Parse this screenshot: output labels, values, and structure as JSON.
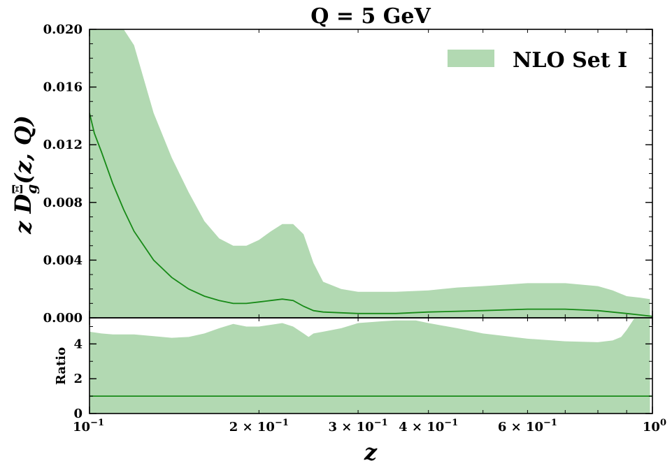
{
  "chart_data": {
    "type": "area",
    "title": "Q = 5 GeV",
    "xlabel": "z",
    "x_scale": "log",
    "xlim": [
      0.1,
      1.0
    ],
    "x_ticks": [
      {
        "value": 0.1,
        "label": "10^-1"
      },
      {
        "value": 0.2,
        "label": "2 × 10^-1"
      },
      {
        "value": 0.3,
        "label": "3 × 10^-1"
      },
      {
        "value": 0.4,
        "label": "4 × 10^-1"
      },
      {
        "value": 0.6,
        "label": "6 × 10^-1"
      },
      {
        "value": 1.0,
        "label": "10^0"
      }
    ],
    "legend": {
      "entries": [
        "NLO Set I"
      ],
      "placement": "top-right"
    },
    "colors": {
      "band": "#b2d9b2",
      "line": "#178a17"
    },
    "panels": [
      {
        "id": "main",
        "ylabel": "z D_g^Ξ(z, Q)",
        "ylim": [
          0.0,
          0.02
        ],
        "y_ticks": [
          "0.000",
          "0.004",
          "0.008",
          "0.012",
          "0.016",
          "0.020"
        ],
        "series": [
          {
            "name": "NLO Set I",
            "kind": "band",
            "x": [
              0.1,
              0.105,
              0.11,
              0.115,
              0.12,
              0.13,
              0.14,
              0.15,
              0.16,
              0.17,
              0.18,
              0.19,
              0.2,
              0.21,
              0.22,
              0.23,
              0.24,
              0.25,
              0.26,
              0.28,
              0.3,
              0.35,
              0.4,
              0.45,
              0.5,
              0.6,
              0.7,
              0.8,
              0.85,
              0.9,
              0.95,
              0.99
            ],
            "upper": [
              0.02,
              0.02,
              0.02,
              0.02,
              0.0189,
              0.0142,
              0.0111,
              0.0087,
              0.0067,
              0.0055,
              0.005,
              0.005,
              0.0054,
              0.006,
              0.0065,
              0.0065,
              0.0058,
              0.0038,
              0.0025,
              0.002,
              0.0018,
              0.0018,
              0.0019,
              0.0021,
              0.0022,
              0.0024,
              0.0024,
              0.0022,
              0.0019,
              0.0015,
              0.0014,
              0.0013
            ],
            "lower": [
              0.0,
              0.0,
              0.0,
              0.0,
              0.0,
              0.0,
              0.0,
              0.0,
              0.0,
              0.0,
              0.0,
              0.0,
              0.0,
              0.0,
              0.0,
              0.0,
              0.0,
              0.0,
              0.0,
              0.0,
              0.0,
              0.0,
              0.0,
              0.0,
              0.0,
              0.0,
              0.0,
              0.0,
              0.0,
              0.0,
              0.0,
              0.0
            ]
          },
          {
            "name": "central",
            "kind": "line",
            "x": [
              0.1,
              0.102,
              0.105,
              0.11,
              0.115,
              0.12,
              0.13,
              0.14,
              0.15,
              0.16,
              0.17,
              0.18,
              0.19,
              0.2,
              0.21,
              0.22,
              0.23,
              0.24,
              0.25,
              0.26,
              0.28,
              0.3,
              0.35,
              0.4,
              0.5,
              0.6,
              0.7,
              0.8,
              0.9,
              0.95,
              1.0
            ],
            "y": [
              0.0142,
              0.0128,
              0.0115,
              0.0093,
              0.0075,
              0.006,
              0.004,
              0.0028,
              0.002,
              0.0015,
              0.0012,
              0.001,
              0.001,
              0.0011,
              0.0012,
              0.0013,
              0.0012,
              0.0008,
              0.0005,
              0.0004,
              0.00035,
              0.0003,
              0.0003,
              0.0004,
              0.0005,
              0.0006,
              0.0006,
              0.0005,
              0.0003,
              0.0002,
              0.0001
            ]
          }
        ]
      },
      {
        "id": "ratio",
        "ylabel": "Ratio",
        "ylim": [
          0,
          5.5
        ],
        "y_ticks": [
          "0",
          "2",
          "4"
        ],
        "series": [
          {
            "name": "ratio band",
            "kind": "band",
            "x": [
              0.1,
              0.105,
              0.11,
              0.12,
              0.13,
              0.14,
              0.15,
              0.16,
              0.17,
              0.18,
              0.19,
              0.2,
              0.21,
              0.22,
              0.23,
              0.24,
              0.245,
              0.25,
              0.26,
              0.28,
              0.3,
              0.33,
              0.35,
              0.38,
              0.4,
              0.45,
              0.5,
              0.6,
              0.7,
              0.8,
              0.85,
              0.88,
              0.9,
              0.93,
              0.95,
              0.99
            ],
            "upper": [
              4.7,
              4.6,
              4.55,
              4.55,
              4.45,
              4.35,
              4.4,
              4.6,
              4.9,
              5.15,
              5.0,
              5.0,
              5.1,
              5.2,
              5.0,
              4.6,
              4.4,
              4.6,
              4.7,
              4.9,
              5.2,
              5.3,
              5.35,
              5.35,
              5.2,
              4.9,
              4.6,
              4.3,
              4.15,
              4.1,
              4.2,
              4.4,
              4.8,
              5.5,
              5.5,
              5.5
            ],
            "lower": [
              0.0,
              0.0,
              0.0,
              0.0,
              0.0,
              0.0,
              0.0,
              0.0,
              0.0,
              0.0,
              0.0,
              0.0,
              0.0,
              0.0,
              0.0,
              0.0,
              0.0,
              0.0,
              0.0,
              0.0,
              0.0,
              0.0,
              0.0,
              0.0,
              0.0,
              0.0,
              0.0,
              0.0,
              0.0,
              0.0,
              0.0,
              0.0,
              0.0,
              0.0,
              0.0,
              0.0
            ]
          },
          {
            "name": "ratio line",
            "kind": "line",
            "x": [
              0.1,
              1.0
            ],
            "y": [
              1.0,
              1.0
            ]
          }
        ]
      }
    ]
  }
}
